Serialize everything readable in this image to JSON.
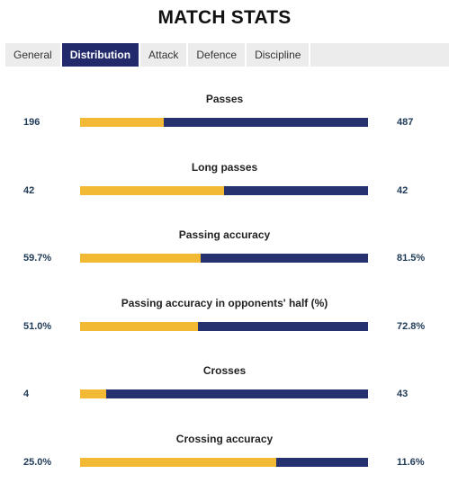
{
  "title": "MATCH STATS",
  "tabs": [
    {
      "label": "General",
      "active": false
    },
    {
      "label": "Distribution",
      "active": true
    },
    {
      "label": "Attack",
      "active": false
    },
    {
      "label": "Defence",
      "active": false
    },
    {
      "label": "Discipline",
      "active": false
    }
  ],
  "colors": {
    "home": "#f2b934",
    "away": "#263170",
    "active_tab": "#222a6b",
    "value_text": "#1f3a57"
  },
  "stats": [
    {
      "label": "Passes",
      "home": "196",
      "away": "487",
      "home_share": 0.29
    },
    {
      "label": "Long passes",
      "home": "42",
      "away": "42",
      "home_share": 0.5
    },
    {
      "label": "Passing accuracy",
      "home": "59.7%",
      "away": "81.5%",
      "home_share": 0.42
    },
    {
      "label": "Passing accuracy in opponents' half (%)",
      "home": "51.0%",
      "away": "72.8%",
      "home_share": 0.41
    },
    {
      "label": "Crosses",
      "home": "4",
      "away": "43",
      "home_share": 0.09
    },
    {
      "label": "Crossing accuracy",
      "home": "25.0%",
      "away": "11.6%",
      "home_share": 0.68
    }
  ]
}
